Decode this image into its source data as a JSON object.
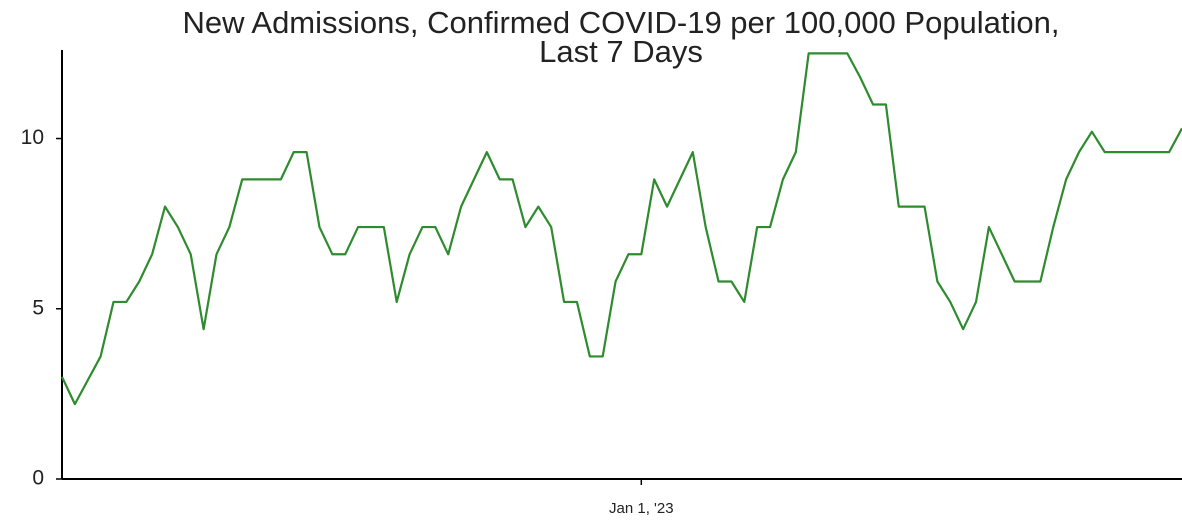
{
  "chart_data": {
    "type": "line",
    "title": "New Admissions, Confirmed COVID-19 per 100,000 Population,\nLast 7 Days",
    "categories": [
      null,
      null,
      null,
      null,
      null,
      null,
      null,
      null,
      null,
      null,
      null,
      null,
      null,
      null,
      null,
      null,
      null,
      null,
      null,
      null,
      null,
      null,
      null,
      null,
      null,
      null,
      null,
      null,
      null,
      null,
      null,
      null,
      null,
      null,
      null,
      null,
      null,
      null,
      null,
      null,
      null,
      null,
      null,
      null,
      null,
      "Jan 1, '23",
      null,
      null,
      null,
      null,
      null,
      null,
      null,
      null,
      null,
      null,
      null,
      null,
      null,
      null,
      null,
      null,
      null,
      null,
      null,
      null,
      null,
      null,
      null,
      null,
      null,
      null,
      null,
      null,
      null,
      null,
      null,
      null,
      null,
      null,
      null,
      null,
      null,
      null,
      null,
      null,
      null,
      null
    ],
    "series": [
      {
        "color": "#2e8b2e",
        "values": [
          3.0,
          2.2,
          2.9,
          3.6,
          5.2,
          5.2,
          5.8,
          6.6,
          8.0,
          7.4,
          6.6,
          4.4,
          6.6,
          7.4,
          8.8,
          8.8,
          8.8,
          8.8,
          9.6,
          9.6,
          7.4,
          6.6,
          6.6,
          7.4,
          7.4,
          7.4,
          5.2,
          6.6,
          7.4,
          7.4,
          6.6,
          8.0,
          8.8,
          9.6,
          8.8,
          8.8,
          7.4,
          8.0,
          7.4,
          5.2,
          5.2,
          3.6,
          3.6,
          5.8,
          6.6,
          6.6,
          8.8,
          8.0,
          8.8,
          9.6,
          7.4,
          5.8,
          5.8,
          5.2,
          7.4,
          7.4,
          8.8,
          9.6,
          12.5,
          12.5,
          12.5,
          12.5,
          11.8,
          11.0,
          11.0,
          8.0,
          8.0,
          8.0,
          5.8,
          5.2,
          4.4,
          5.2,
          7.4,
          6.6,
          5.8,
          5.8,
          5.8,
          7.4,
          8.8,
          9.6,
          10.2,
          9.6,
          9.6,
          9.6,
          9.6,
          9.6,
          9.6,
          10.3
        ]
      }
    ],
    "ylim": [
      0,
      12.6
    ],
    "yticks": [
      0,
      5,
      10
    ],
    "grid": false
  }
}
